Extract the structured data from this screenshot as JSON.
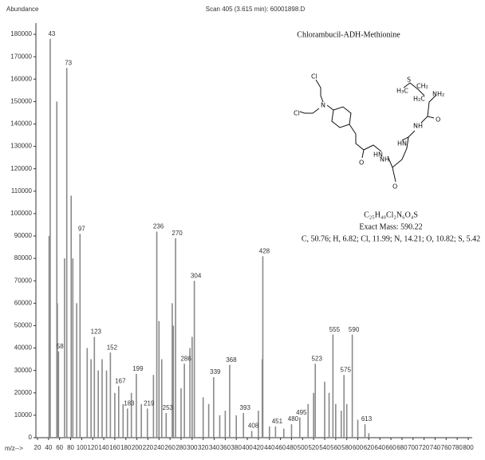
{
  "chart_data": {
    "type": "stick",
    "title": "Scan 405 (3.615 min): 60001898.D",
    "y_label": "Abundance",
    "x_label": "m/z-->",
    "color": "#8a8a8a",
    "x": [
      43,
      58,
      73,
      97,
      123,
      152,
      167,
      183,
      199,
      219,
      236,
      253,
      270,
      286,
      304,
      339,
      368,
      393,
      408,
      428,
      451,
      480,
      495,
      523,
      555,
      575,
      590,
      613
    ],
    "values": [
      178000,
      38500,
      165000,
      91000,
      45000,
      38000,
      23000,
      13000,
      28500,
      13000,
      92000,
      11000,
      89000,
      33000,
      70000,
      27000,
      32500,
      11000,
      3000,
      81000,
      5000,
      6000,
      9000,
      33000,
      46000,
      28000,
      46000,
      6000
    ],
    "minor_x": [
      41,
      55,
      56,
      69,
      81,
      84,
      91,
      110,
      117,
      130,
      137,
      145,
      160,
      175,
      190,
      208,
      230,
      240,
      245,
      264,
      266,
      280,
      296,
      300,
      320,
      330,
      350,
      360,
      380,
      420,
      427,
      440,
      466,
      510,
      520,
      540,
      548,
      560,
      570,
      580,
      600,
      620
    ],
    "minor_values": [
      90000,
      150000,
      60000,
      80000,
      108000,
      80000,
      60000,
      40000,
      35000,
      30000,
      35000,
      30000,
      20000,
      15000,
      20000,
      15000,
      28000,
      52000,
      35000,
      60000,
      50000,
      22000,
      40000,
      45000,
      18000,
      15000,
      10000,
      12000,
      10000,
      12000,
      35000,
      5000,
      4000,
      15000,
      20000,
      25000,
      20000,
      15000,
      12000,
      15000,
      8000,
      2000
    ],
    "xlim": [
      20,
      800
    ],
    "ylim": [
      0,
      185000
    ],
    "xticks": [
      20,
      40,
      60,
      80,
      100,
      120,
      140,
      160,
      180,
      200,
      220,
      240,
      260,
      280,
      300,
      320,
      340,
      360,
      380,
      400,
      420,
      440,
      460,
      480,
      500,
      520,
      540,
      560,
      580,
      600,
      620,
      640,
      660,
      680,
      700,
      720,
      740,
      760,
      780,
      800
    ],
    "yticks": [
      0,
      10000,
      20000,
      30000,
      40000,
      50000,
      60000,
      70000,
      80000,
      90000,
      100000,
      110000,
      120000,
      130000,
      140000,
      150000,
      160000,
      170000,
      180000
    ],
    "compound": {
      "name": "Chlorambucil-ADH-Methionine",
      "formula": "C₂₅H₄₀Cl₂N₆O₄S",
      "exact_mass": "Exact Mass: 590.22",
      "composition": "C, 50.76; H, 6.82; Cl, 11.99; N, 14.21; O, 10.82; S, 5.42",
      "atoms": [
        "Cl",
        "N",
        "Cl",
        "H₃C",
        "S",
        "CH₂",
        "H₂C",
        "NH₂",
        "O",
        "NH",
        "HN",
        "O",
        "O",
        "HN",
        "NH"
      ]
    }
  }
}
